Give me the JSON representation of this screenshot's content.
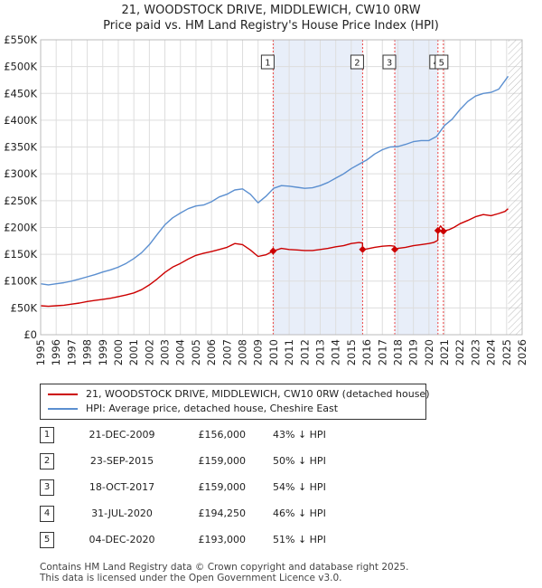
{
  "title_line1": "21, WOODSTOCK DRIVE, MIDDLEWICH, CW10 0RW",
  "title_line2": "Price paid vs. HM Land Registry's House Price Index (HPI)",
  "colors": {
    "property": "#cc0000",
    "hpi": "#5b8fd0",
    "shade": "#e8eef9",
    "vline": "#ee4444",
    "grid": "#dddddd"
  },
  "legend": {
    "property": "21, WOODSTOCK DRIVE, MIDDLEWICH, CW10 0RW (detached house)",
    "hpi": "HPI: Average price, detached house, Cheshire East"
  },
  "transactions": [
    {
      "num": "1",
      "date": "21-DEC-2009",
      "price": "£156,000",
      "hpi": "43% ↓ HPI"
    },
    {
      "num": "2",
      "date": "23-SEP-2015",
      "price": "£159,000",
      "hpi": "50% ↓ HPI"
    },
    {
      "num": "3",
      "date": "18-OCT-2017",
      "price": "£159,000",
      "hpi": "54% ↓ HPI"
    },
    {
      "num": "4",
      "date": "31-JUL-2020",
      "price": "£194,250",
      "hpi": "46% ↓ HPI"
    },
    {
      "num": "5",
      "date": "04-DEC-2020",
      "price": "£193,000",
      "hpi": "51% ↓ HPI"
    }
  ],
  "footer_line1": "Contains HM Land Registry data © Crown copyright and database right 2025.",
  "footer_line2": "This data is licensed under the Open Government Licence v3.0.",
  "chart_data": {
    "type": "line",
    "xlim": [
      1995,
      2026
    ],
    "ylim": [
      0,
      550000
    ],
    "y_ticks": [
      {
        "value": 0,
        "label": "£0"
      },
      {
        "value": 50000,
        "label": "£50K"
      },
      {
        "value": 100000,
        "label": "£100K"
      },
      {
        "value": 150000,
        "label": "£150K"
      },
      {
        "value": 200000,
        "label": "£200K"
      },
      {
        "value": 250000,
        "label": "£250K"
      },
      {
        "value": 300000,
        "label": "£300K"
      },
      {
        "value": 350000,
        "label": "£350K"
      },
      {
        "value": 400000,
        "label": "£400K"
      },
      {
        "value": 450000,
        "label": "£450K"
      },
      {
        "value": 500000,
        "label": "£500K"
      },
      {
        "value": 550000,
        "label": "£550K"
      }
    ],
    "x_ticks": [
      "1995",
      "1996",
      "1997",
      "1998",
      "1999",
      "2000",
      "2001",
      "2002",
      "2003",
      "2004",
      "2005",
      "2006",
      "2007",
      "2008",
      "2009",
      "2010",
      "2011",
      "2012",
      "2013",
      "2014",
      "2015",
      "2016",
      "2017",
      "2018",
      "2019",
      "2020",
      "2021",
      "2022",
      "2023",
      "2024",
      "2025",
      "2026"
    ],
    "grid": true,
    "future_hatch_from": 2025.1,
    "sales": [
      {
        "label": "1",
        "x": 2009.97,
        "y": 156000
      },
      {
        "label": "2",
        "x": 2015.73,
        "y": 159000
      },
      {
        "label": "3",
        "x": 2017.8,
        "y": 159000
      },
      {
        "label": "4",
        "x": 2020.58,
        "y": 194250
      },
      {
        "label": "5",
        "x": 2020.93,
        "y": 193000
      }
    ],
    "shaded_spans": [
      [
        2009.97,
        2015.73
      ],
      [
        2017.8,
        2020.58
      ]
    ],
    "series": [
      {
        "name": "21, WOODSTOCK DRIVE, MIDDLEWICH, CW10 0RW (detached house)",
        "x": [
          1995.0,
          1995.5,
          1996.0,
          1996.5,
          1997.0,
          1997.5,
          1998.0,
          1998.5,
          1999.0,
          1999.5,
          2000.0,
          2000.5,
          2001.0,
          2001.5,
          2002.0,
          2002.5,
          2003.0,
          2003.5,
          2004.0,
          2004.5,
          2005.0,
          2005.5,
          2006.0,
          2006.5,
          2007.0,
          2007.5,
          2008.0,
          2008.5,
          2009.0,
          2009.5,
          2009.97,
          2010.5,
          2011.0,
          2011.5,
          2012.0,
          2012.5,
          2013.0,
          2013.5,
          2014.0,
          2014.5,
          2015.0,
          2015.5,
          2015.72,
          2015.73,
          2016.0,
          2016.5,
          2017.0,
          2017.5,
          2017.79,
          2017.8,
          2018.0,
          2018.5,
          2019.0,
          2019.5,
          2020.0,
          2020.3,
          2020.57,
          2020.58,
          2020.75,
          2020.92,
          2020.93,
          2021.3,
          2021.6,
          2022.0,
          2022.5,
          2023.0,
          2023.5,
          2024.0,
          2024.5,
          2024.9,
          2025.1
        ],
        "values": [
          54000,
          53000,
          54000,
          55000,
          57000,
          59000,
          62000,
          64000,
          66000,
          68000,
          71000,
          74000,
          78000,
          84000,
          93000,
          104000,
          116000,
          126000,
          133000,
          141000,
          148000,
          152000,
          155000,
          159000,
          163000,
          170000,
          168000,
          158000,
          146000,
          149000,
          156000,
          161000,
          159000,
          158000,
          157000,
          157000,
          159000,
          161000,
          164000,
          166000,
          170000,
          172000,
          171000,
          159000,
          160000,
          163000,
          165000,
          166000,
          165000,
          159000,
          161000,
          163000,
          166000,
          168000,
          170000,
          172000,
          176000,
          194250,
          203000,
          196000,
          193000,
          196000,
          200000,
          207000,
          213000,
          220000,
          224000,
          222000,
          226000,
          230000,
          235000
        ]
      },
      {
        "name": "HPI: Average price, detached house, Cheshire East",
        "x": [
          1995.0,
          1995.5,
          1996.0,
          1996.5,
          1997.0,
          1997.5,
          1998.0,
          1998.5,
          1999.0,
          1999.5,
          2000.0,
          2000.5,
          2001.0,
          2001.5,
          2002.0,
          2002.5,
          2003.0,
          2003.5,
          2004.0,
          2004.5,
          2005.0,
          2005.5,
          2006.0,
          2006.5,
          2007.0,
          2007.5,
          2008.0,
          2008.5,
          2009.0,
          2009.5,
          2010.0,
          2010.5,
          2011.0,
          2011.5,
          2012.0,
          2012.5,
          2013.0,
          2013.5,
          2014.0,
          2014.5,
          2015.0,
          2015.5,
          2016.0,
          2016.5,
          2017.0,
          2017.5,
          2018.0,
          2018.5,
          2019.0,
          2019.5,
          2020.0,
          2020.5,
          2021.0,
          2021.5,
          2022.0,
          2022.5,
          2023.0,
          2023.5,
          2024.0,
          2024.5,
          2025.0,
          2025.1
        ],
        "values": [
          95000,
          93000,
          95000,
          97000,
          100000,
          104000,
          108000,
          112000,
          117000,
          121000,
          126000,
          133000,
          142000,
          153000,
          168000,
          187000,
          205000,
          218000,
          227000,
          235000,
          240000,
          242000,
          248000,
          257000,
          262000,
          270000,
          272000,
          262000,
          246000,
          258000,
          273000,
          278000,
          277000,
          275000,
          273000,
          274000,
          278000,
          284000,
          292000,
          300000,
          310000,
          318000,
          326000,
          337000,
          345000,
          350000,
          351000,
          355000,
          360000,
          362000,
          362000,
          370000,
          390000,
          402000,
          420000,
          435000,
          445000,
          450000,
          452000,
          458000,
          478000,
          482000
        ]
      }
    ]
  }
}
